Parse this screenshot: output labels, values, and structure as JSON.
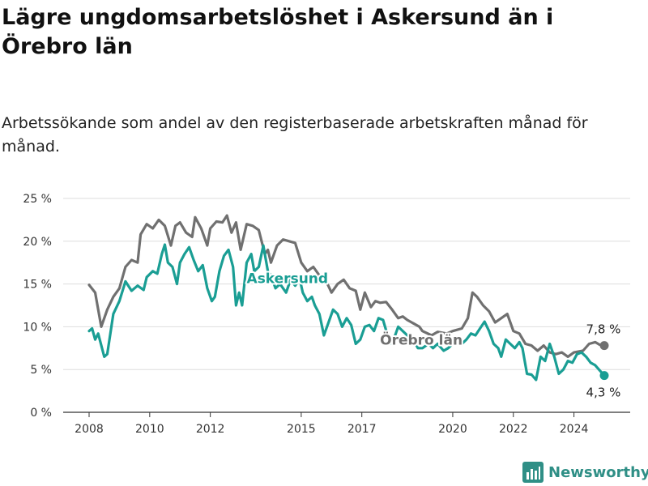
{
  "title": "Lägre ungdomsarbetslöshet i Askersund än i Örebro län",
  "subtitle": "Arbetssökande som andel av den registerbaserade arbetskraften månad för månad.",
  "brand": {
    "name": "Newsworthy",
    "icon": "bar-chart-logo-icon",
    "color": "#2f8f86"
  },
  "chart_data": {
    "type": "line",
    "xlabel": "",
    "ylabel": "",
    "xlim": [
      2007.5,
      2025.5
    ],
    "ylim": [
      0,
      25
    ],
    "y_ticks": [
      0,
      5,
      10,
      15,
      20,
      25
    ],
    "y_tick_labels": [
      "0 %",
      "5 %",
      "10 %",
      "15 %",
      "20 %",
      "25 %"
    ],
    "x_ticks": [
      2008,
      2010,
      2012,
      2015,
      2017,
      2020,
      2022,
      2024
    ],
    "x_tick_labels": [
      "2008",
      "2010",
      "2012",
      "2015",
      "2017",
      "2020",
      "2022",
      "2024"
    ],
    "grid": true,
    "legend": "none",
    "series": [
      {
        "name": "Örebro län",
        "color": "#707070",
        "end_label": "7,8 %",
        "points": [
          [
            2008.0,
            14.9
          ],
          [
            2008.2,
            14.0
          ],
          [
            2008.4,
            10.0
          ],
          [
            2008.6,
            12.0
          ],
          [
            2008.8,
            13.5
          ],
          [
            2009.0,
            14.5
          ],
          [
            2009.2,
            17.0
          ],
          [
            2009.4,
            17.8
          ],
          [
            2009.6,
            17.5
          ],
          [
            2009.7,
            20.8
          ],
          [
            2009.9,
            22.0
          ],
          [
            2010.1,
            21.5
          ],
          [
            2010.3,
            22.5
          ],
          [
            2010.5,
            21.8
          ],
          [
            2010.7,
            19.5
          ],
          [
            2010.85,
            21.8
          ],
          [
            2011.0,
            22.2
          ],
          [
            2011.2,
            21.0
          ],
          [
            2011.4,
            20.5
          ],
          [
            2011.5,
            22.8
          ],
          [
            2011.7,
            21.5
          ],
          [
            2011.9,
            19.5
          ],
          [
            2012.0,
            21.5
          ],
          [
            2012.2,
            22.3
          ],
          [
            2012.4,
            22.2
          ],
          [
            2012.55,
            23.0
          ],
          [
            2012.7,
            21.0
          ],
          [
            2012.85,
            22.2
          ],
          [
            2013.0,
            19.0
          ],
          [
            2013.2,
            22.0
          ],
          [
            2013.4,
            21.8
          ],
          [
            2013.6,
            21.3
          ],
          [
            2013.8,
            18.5
          ],
          [
            2013.9,
            19.0
          ],
          [
            2014.0,
            17.5
          ],
          [
            2014.2,
            19.5
          ],
          [
            2014.4,
            20.2
          ],
          [
            2014.6,
            20.0
          ],
          [
            2014.8,
            19.8
          ],
          [
            2015.0,
            17.5
          ],
          [
            2015.2,
            16.5
          ],
          [
            2015.4,
            17.0
          ],
          [
            2015.6,
            16.0
          ],
          [
            2015.8,
            15.5
          ],
          [
            2016.0,
            14.0
          ],
          [
            2016.2,
            15.0
          ],
          [
            2016.4,
            15.5
          ],
          [
            2016.6,
            14.5
          ],
          [
            2016.8,
            14.2
          ],
          [
            2016.95,
            12.0
          ],
          [
            2017.1,
            14.0
          ],
          [
            2017.3,
            12.3
          ],
          [
            2017.45,
            13.0
          ],
          [
            2017.6,
            12.8
          ],
          [
            2017.8,
            12.9
          ],
          [
            2018.0,
            12.0
          ],
          [
            2018.2,
            11.0
          ],
          [
            2018.35,
            11.2
          ],
          [
            2018.5,
            10.8
          ],
          [
            2018.7,
            10.4
          ],
          [
            2018.9,
            10.0
          ],
          [
            2019.0,
            9.5
          ],
          [
            2019.3,
            9.0
          ],
          [
            2019.5,
            9.4
          ],
          [
            2019.8,
            9.2
          ],
          [
            2020.0,
            9.5
          ],
          [
            2020.3,
            9.8
          ],
          [
            2020.5,
            11.0
          ],
          [
            2020.65,
            14.0
          ],
          [
            2020.8,
            13.5
          ],
          [
            2021.0,
            12.5
          ],
          [
            2021.2,
            11.8
          ],
          [
            2021.4,
            10.5
          ],
          [
            2021.6,
            11.0
          ],
          [
            2021.8,
            11.5
          ],
          [
            2022.0,
            9.5
          ],
          [
            2022.2,
            9.2
          ],
          [
            2022.4,
            8.0
          ],
          [
            2022.6,
            7.8
          ],
          [
            2022.8,
            7.2
          ],
          [
            2023.0,
            7.8
          ],
          [
            2023.2,
            7.0
          ],
          [
            2023.4,
            6.8
          ],
          [
            2023.6,
            7.0
          ],
          [
            2023.8,
            6.5
          ],
          [
            2024.0,
            7.0
          ],
          [
            2024.3,
            7.2
          ],
          [
            2024.5,
            8.0
          ],
          [
            2024.7,
            8.2
          ],
          [
            2024.85,
            7.9
          ],
          [
            2025.0,
            7.8
          ]
        ]
      },
      {
        "name": "Askersund",
        "color": "#1a9e94",
        "end_label": "4,3 %",
        "points": [
          [
            2008.0,
            9.5
          ],
          [
            2008.1,
            9.8
          ],
          [
            2008.2,
            8.5
          ],
          [
            2008.3,
            9.2
          ],
          [
            2008.5,
            6.5
          ],
          [
            2008.6,
            6.8
          ],
          [
            2008.8,
            11.5
          ],
          [
            2009.0,
            13.0
          ],
          [
            2009.2,
            15.3
          ],
          [
            2009.4,
            14.2
          ],
          [
            2009.6,
            14.8
          ],
          [
            2009.8,
            14.3
          ],
          [
            2009.9,
            15.8
          ],
          [
            2010.1,
            16.5
          ],
          [
            2010.25,
            16.2
          ],
          [
            2010.4,
            18.5
          ],
          [
            2010.5,
            19.6
          ],
          [
            2010.6,
            17.5
          ],
          [
            2010.75,
            17.0
          ],
          [
            2010.9,
            15.0
          ],
          [
            2011.0,
            17.5
          ],
          [
            2011.15,
            18.5
          ],
          [
            2011.3,
            19.3
          ],
          [
            2011.45,
            17.8
          ],
          [
            2011.6,
            16.5
          ],
          [
            2011.75,
            17.2
          ],
          [
            2011.9,
            14.5
          ],
          [
            2012.05,
            13.0
          ],
          [
            2012.15,
            13.5
          ],
          [
            2012.3,
            16.5
          ],
          [
            2012.45,
            18.3
          ],
          [
            2012.6,
            19.0
          ],
          [
            2012.75,
            17.0
          ],
          [
            2012.85,
            12.5
          ],
          [
            2012.95,
            14.0
          ],
          [
            2013.05,
            12.5
          ],
          [
            2013.2,
            17.5
          ],
          [
            2013.35,
            18.5
          ],
          [
            2013.45,
            16.5
          ],
          [
            2013.6,
            17.0
          ],
          [
            2013.75,
            19.5
          ],
          [
            2013.9,
            16.5
          ],
          [
            2014.0,
            16.0
          ],
          [
            2014.15,
            14.5
          ],
          [
            2014.3,
            15.0
          ],
          [
            2014.5,
            14.0
          ],
          [
            2014.65,
            15.5
          ],
          [
            2014.8,
            14.8
          ],
          [
            2014.95,
            15.6
          ],
          [
            2015.05,
            14.0
          ],
          [
            2015.2,
            13.0
          ],
          [
            2015.35,
            13.5
          ],
          [
            2015.45,
            12.5
          ],
          [
            2015.6,
            11.5
          ],
          [
            2015.75,
            9.0
          ],
          [
            2015.9,
            10.5
          ],
          [
            2016.05,
            12.0
          ],
          [
            2016.2,
            11.5
          ],
          [
            2016.35,
            10.0
          ],
          [
            2016.5,
            11.0
          ],
          [
            2016.65,
            10.2
          ],
          [
            2016.8,
            8.0
          ],
          [
            2016.95,
            8.5
          ],
          [
            2017.1,
            10.0
          ],
          [
            2017.25,
            10.2
          ],
          [
            2017.4,
            9.5
          ],
          [
            2017.55,
            11.0
          ],
          [
            2017.7,
            10.8
          ],
          [
            2017.85,
            9.0
          ],
          [
            2018.0,
            8.0
          ],
          [
            2018.2,
            10.0
          ],
          [
            2018.35,
            9.5
          ],
          [
            2018.5,
            9.0
          ],
          [
            2018.7,
            8.5
          ],
          [
            2018.85,
            7.5
          ],
          [
            2019.0,
            7.5
          ],
          [
            2019.2,
            8.0
          ],
          [
            2019.35,
            7.5
          ],
          [
            2019.5,
            8.0
          ],
          [
            2019.7,
            7.2
          ],
          [
            2019.85,
            7.5
          ],
          [
            2020.0,
            8.0
          ],
          [
            2020.15,
            8.5
          ],
          [
            2020.3,
            8.0
          ],
          [
            2020.45,
            8.5
          ],
          [
            2020.6,
            9.2
          ],
          [
            2020.75,
            9.0
          ],
          [
            2020.9,
            9.8
          ],
          [
            2021.05,
            10.6
          ],
          [
            2021.2,
            9.5
          ],
          [
            2021.35,
            8.0
          ],
          [
            2021.5,
            7.5
          ],
          [
            2021.6,
            6.5
          ],
          [
            2021.75,
            8.5
          ],
          [
            2021.9,
            8.0
          ],
          [
            2022.05,
            7.5
          ],
          [
            2022.2,
            8.2
          ],
          [
            2022.3,
            7.5
          ],
          [
            2022.45,
            4.5
          ],
          [
            2022.6,
            4.4
          ],
          [
            2022.75,
            3.8
          ],
          [
            2022.9,
            6.5
          ],
          [
            2023.05,
            6.0
          ],
          [
            2023.2,
            8.0
          ],
          [
            2023.35,
            6.5
          ],
          [
            2023.5,
            4.5
          ],
          [
            2023.65,
            5.0
          ],
          [
            2023.8,
            6.0
          ],
          [
            2023.95,
            5.8
          ],
          [
            2024.1,
            6.8
          ],
          [
            2024.25,
            7.0
          ],
          [
            2024.4,
            6.5
          ],
          [
            2024.55,
            5.8
          ],
          [
            2024.7,
            5.5
          ],
          [
            2024.85,
            4.9
          ],
          [
            2025.0,
            4.3
          ]
        ]
      }
    ]
  }
}
